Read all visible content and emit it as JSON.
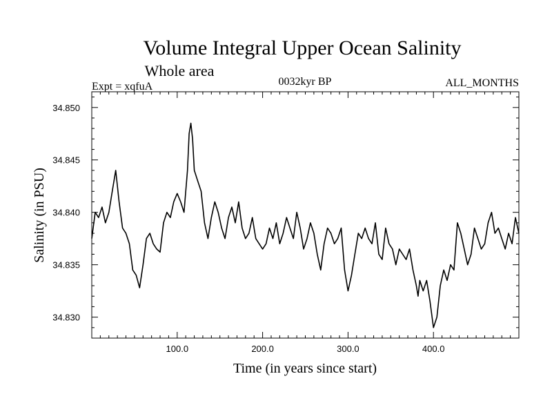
{
  "chart_data": {
    "type": "line",
    "title": "Volume Integral Upper Ocean Salinity",
    "subtitle": "Whole area",
    "left_label": "Expt = xqfuA",
    "center_label": "0032kyr BP",
    "right_label": "ALL_MONTHS",
    "xlabel": "Time (in years since start)",
    "ylabel": "Salinity (in PSU)",
    "xlim": [
      0,
      500
    ],
    "ylim": [
      34.828,
      34.8515
    ],
    "x_ticks": [
      100,
      200,
      300,
      400
    ],
    "x_tick_labels": [
      "100.0",
      "200.0",
      "300.0",
      "400.0"
    ],
    "y_ticks": [
      34.83,
      34.835,
      34.84,
      34.845,
      34.85
    ],
    "y_tick_labels": [
      "34.830",
      "34.835",
      "34.840",
      "34.845",
      "34.850"
    ],
    "series": [
      {
        "name": "salinity",
        "x": [
          0,
          4,
          8,
          12,
          16,
          20,
          24,
          28,
          32,
          36,
          40,
          44,
          48,
          52,
          56,
          60,
          64,
          68,
          72,
          76,
          80,
          84,
          88,
          92,
          96,
          100,
          104,
          108,
          112,
          114,
          116,
          118,
          120,
          124,
          128,
          132,
          136,
          140,
          144,
          148,
          152,
          156,
          160,
          164,
          168,
          172,
          176,
          180,
          184,
          188,
          192,
          196,
          200,
          204,
          208,
          212,
          216,
          220,
          224,
          228,
          232,
          236,
          240,
          244,
          248,
          252,
          256,
          260,
          264,
          268,
          272,
          276,
          280,
          284,
          288,
          292,
          296,
          300,
          304,
          308,
          312,
          316,
          320,
          324,
          328,
          332,
          336,
          340,
          344,
          348,
          352,
          356,
          360,
          364,
          368,
          372,
          376,
          380,
          382,
          384,
          388,
          392,
          396,
          400,
          404,
          408,
          412,
          416,
          420,
          424,
          428,
          432,
          436,
          440,
          444,
          448,
          452,
          456,
          460,
          464,
          468,
          472,
          476,
          480,
          484,
          488,
          492,
          496,
          500
        ],
        "values": [
          34.8375,
          34.84,
          34.8395,
          34.8405,
          34.839,
          34.84,
          34.842,
          34.844,
          34.841,
          34.8385,
          34.838,
          34.837,
          34.8345,
          34.834,
          34.8328,
          34.835,
          34.8375,
          34.838,
          34.837,
          34.8365,
          34.8362,
          34.839,
          34.84,
          34.8395,
          34.841,
          34.8418,
          34.841,
          34.84,
          34.844,
          34.8475,
          34.8485,
          34.847,
          34.844,
          34.843,
          34.842,
          34.839,
          34.8375,
          34.8395,
          34.841,
          34.84,
          34.8385,
          34.8375,
          34.8395,
          34.8405,
          34.839,
          34.841,
          34.8385,
          34.8375,
          34.838,
          34.8395,
          34.8375,
          34.837,
          34.8365,
          34.837,
          34.8385,
          34.8375,
          34.839,
          34.837,
          34.838,
          34.8395,
          34.8385,
          34.8375,
          34.84,
          34.8385,
          34.8365,
          34.8375,
          34.839,
          34.838,
          34.836,
          34.8345,
          34.837,
          34.8385,
          34.838,
          34.837,
          34.8375,
          34.8385,
          34.8345,
          34.8325,
          34.834,
          34.836,
          34.838,
          34.8375,
          34.8385,
          34.8375,
          34.837,
          34.839,
          34.836,
          34.8355,
          34.8385,
          34.837,
          34.8365,
          34.835,
          34.8365,
          34.836,
          34.8355,
          34.8365,
          34.8345,
          34.833,
          34.832,
          34.8335,
          34.8325,
          34.8335,
          34.8315,
          34.829,
          34.83,
          34.833,
          34.8345,
          34.8335,
          34.835,
          34.8345,
          34.839,
          34.838,
          34.8365,
          34.835,
          34.836,
          34.8385,
          34.8375,
          34.8365,
          34.837,
          34.839,
          34.84,
          34.838,
          34.8385,
          34.8375,
          34.8365,
          34.838,
          34.837,
          34.8395,
          34.838
        ]
      }
    ]
  },
  "colors": {
    "line": "#000000",
    "background": "#ffffff",
    "axis": "#000000"
  }
}
